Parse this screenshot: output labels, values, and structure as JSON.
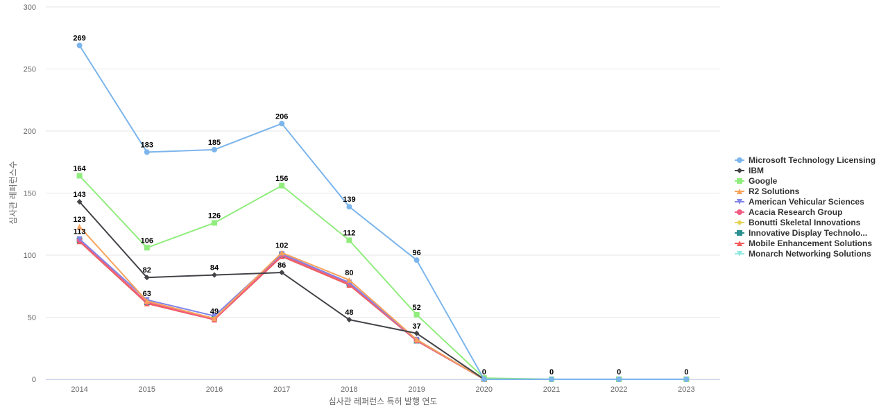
{
  "chart_data": {
    "type": "line",
    "title": "",
    "xlabel": "심사관 레퍼런스 특허 발행 연도",
    "ylabel": "심사관 레퍼런스수",
    "categories": [
      "2014",
      "2015",
      "2016",
      "2017",
      "2018",
      "2019",
      "2020",
      "2021",
      "2022",
      "2023"
    ],
    "ylim": [
      0,
      300
    ],
    "yticks": [
      0,
      50,
      100,
      150,
      200,
      250,
      300
    ],
    "grid": true,
    "legend_position": "right",
    "series": [
      {
        "name": "Microsoft Technology Licensing",
        "color": "#7cb5ec",
        "marker": "circle",
        "values": [
          269,
          183,
          185,
          206,
          139,
          96,
          0,
          0,
          0,
          0
        ],
        "show_labels": true
      },
      {
        "name": "IBM",
        "color": "#434348",
        "marker": "diamond",
        "values": [
          143,
          82,
          84,
          86,
          48,
          37,
          0,
          0,
          0,
          0
        ],
        "show_labels": true
      },
      {
        "name": "Google",
        "color": "#90ed7d",
        "marker": "square",
        "values": [
          164,
          106,
          126,
          156,
          112,
          52,
          1,
          0,
          0,
          0
        ],
        "show_labels": true
      },
      {
        "name": "R2 Solutions",
        "color": "#f7a35c",
        "marker": "triangle",
        "values": [
          123,
          63,
          49,
          102,
          80,
          32,
          0,
          0,
          0,
          0
        ],
        "show_labels": true
      },
      {
        "name": "American Vehicular Sciences",
        "color": "#8085e9",
        "marker": "triangle-down",
        "values": [
          113,
          64,
          51,
          101,
          78,
          32,
          0,
          0,
          0,
          0
        ],
        "show_labels": false
      },
      {
        "name": "Acacia Research Group",
        "color": "#f15c80",
        "marker": "circle",
        "values": [
          112,
          62,
          48,
          100,
          77,
          31,
          0,
          0,
          0,
          0
        ],
        "show_labels": false
      },
      {
        "name": "Bonutti Skeletal Innovations",
        "color": "#e4d354",
        "marker": "diamond",
        "values": [
          112,
          62,
          49,
          100,
          77,
          31,
          0,
          0,
          0,
          0
        ],
        "show_labels": false
      },
      {
        "name": "Innovative Display Technolo...",
        "color": "#2b908f",
        "marker": "square",
        "values": [
          112,
          62,
          49,
          100,
          77,
          31,
          0,
          0,
          0,
          0
        ],
        "show_labels": false
      },
      {
        "name": "Mobile Enhancement Solutions",
        "color": "#f45b5b",
        "marker": "triangle",
        "values": [
          111,
          61,
          48,
          99,
          76,
          31,
          0,
          0,
          0,
          0
        ],
        "show_labels": false
      },
      {
        "name": "Monarch Networking Solutions",
        "color": "#91e8e1",
        "marker": "triangle-down",
        "values": [
          111,
          61,
          48,
          99,
          76,
          31,
          0,
          0,
          0,
          0
        ],
        "show_labels": false
      }
    ],
    "data_labels": [
      {
        "series": 0,
        "index": 0,
        "text": "269"
      },
      {
        "series": 0,
        "index": 1,
        "text": "183"
      },
      {
        "series": 0,
        "index": 2,
        "text": "185"
      },
      {
        "series": 0,
        "index": 3,
        "text": "206"
      },
      {
        "series": 0,
        "index": 4,
        "text": "139"
      },
      {
        "series": 0,
        "index": 5,
        "text": "96"
      },
      {
        "series": 0,
        "index": 6,
        "text": "0"
      },
      {
        "series": 0,
        "index": 7,
        "text": "0"
      },
      {
        "series": 0,
        "index": 8,
        "text": "0"
      },
      {
        "series": 0,
        "index": 9,
        "text": "0"
      },
      {
        "series": 1,
        "index": 0,
        "text": "143"
      },
      {
        "series": 1,
        "index": 1,
        "text": "82"
      },
      {
        "series": 1,
        "index": 2,
        "text": "84"
      },
      {
        "series": 1,
        "index": 3,
        "text": "86"
      },
      {
        "series": 1,
        "index": 4,
        "text": "48"
      },
      {
        "series": 1,
        "index": 5,
        "text": "37"
      },
      {
        "series": 2,
        "index": 0,
        "text": "164"
      },
      {
        "series": 2,
        "index": 1,
        "text": "106"
      },
      {
        "series": 2,
        "index": 2,
        "text": "126"
      },
      {
        "series": 2,
        "index": 3,
        "text": "156"
      },
      {
        "series": 2,
        "index": 4,
        "text": "112"
      },
      {
        "series": 2,
        "index": 5,
        "text": "52"
      },
      {
        "series": 3,
        "index": 0,
        "text": "123"
      },
      {
        "series": 3,
        "index": 1,
        "text": "63"
      },
      {
        "series": 3,
        "index": 2,
        "text": "49"
      },
      {
        "series": 3,
        "index": 3,
        "text": "102"
      },
      {
        "series": 3,
        "index": 4,
        "text": "80"
      },
      {
        "series": 4,
        "index": 0,
        "text": "113"
      }
    ]
  }
}
